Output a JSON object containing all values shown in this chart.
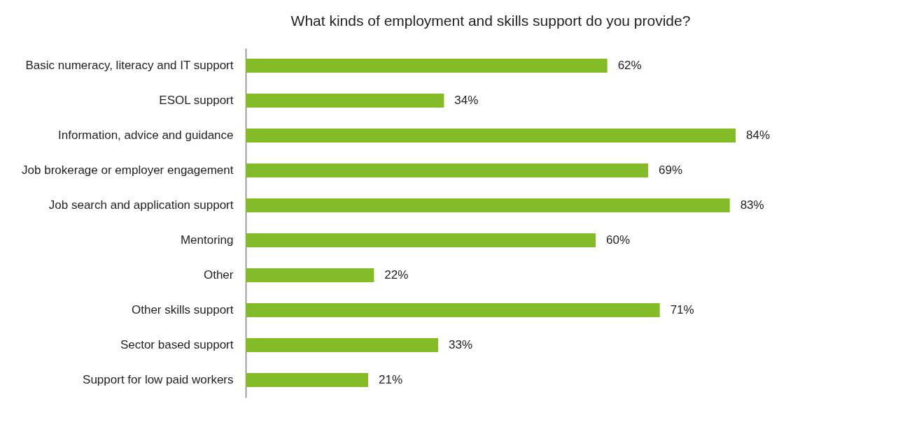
{
  "chart_data": {
    "type": "bar",
    "orientation": "horizontal",
    "title": "What kinds of employment and skills support do you provide?",
    "categories": [
      "Basic numeracy, literacy and IT support",
      "ESOL support",
      "Information, advice and guidance",
      "Job brokerage or employer engagement",
      "Job search and application support",
      "Mentoring",
      "Other",
      "Other skills support",
      "Sector based support",
      "Support for low paid workers"
    ],
    "values": [
      62,
      34,
      84,
      69,
      83,
      60,
      22,
      71,
      33,
      21
    ],
    "value_labels": [
      "62%",
      "34%",
      "84%",
      "69%",
      "83%",
      "60%",
      "22%",
      "71%",
      "33%",
      "21%"
    ],
    "color": "#84bb29",
    "grid": false
  }
}
